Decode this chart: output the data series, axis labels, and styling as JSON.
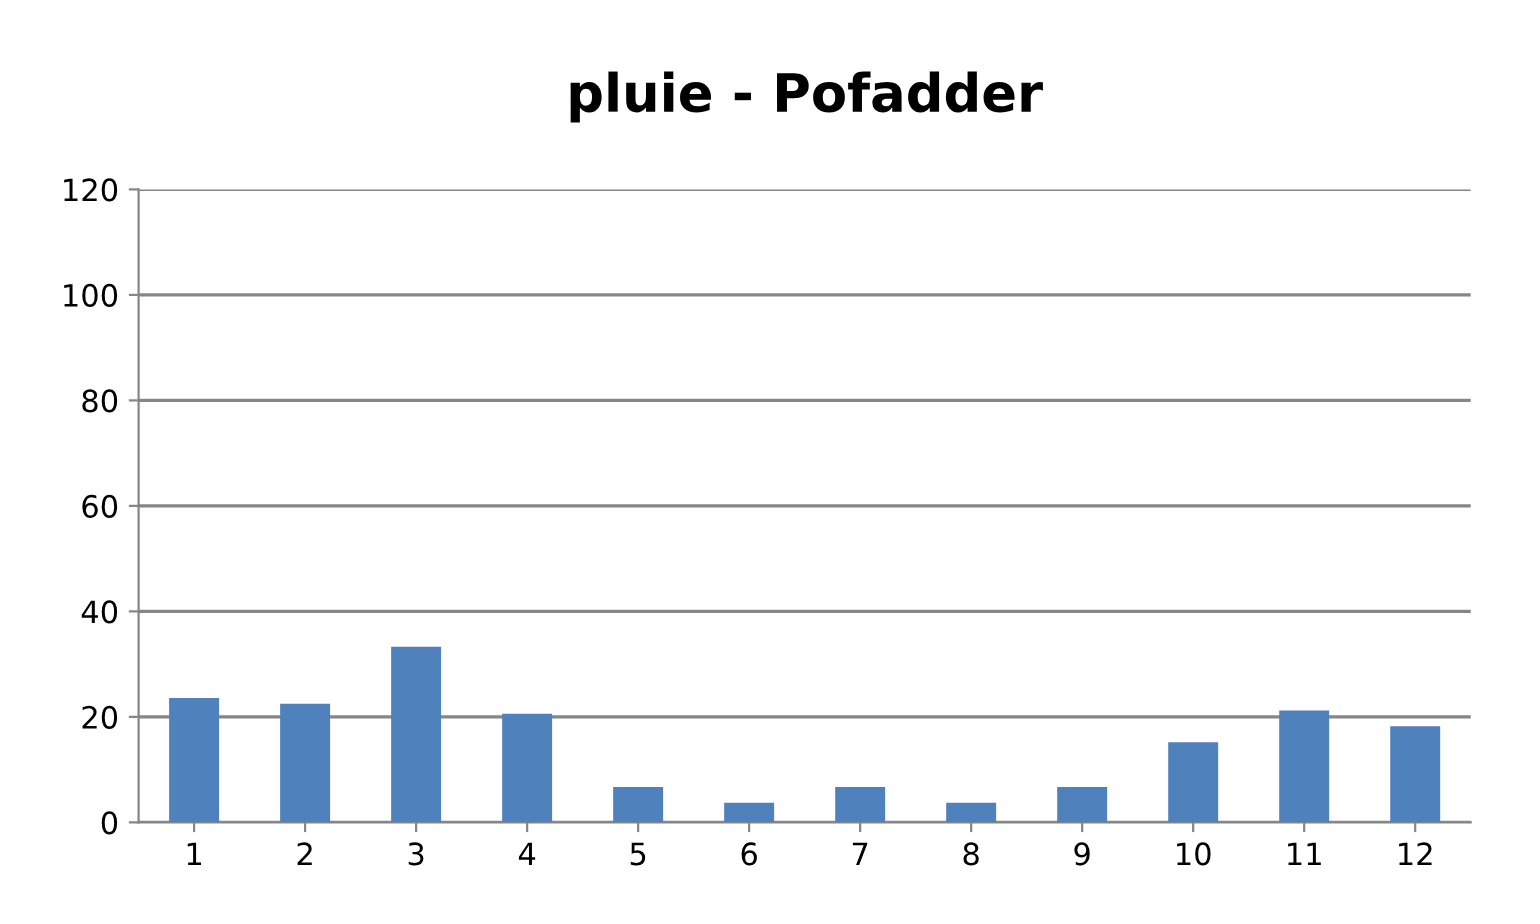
{
  "chart_data": {
    "type": "bar",
    "title": "pluie - Pofadder",
    "categories": [
      "1",
      "2",
      "3",
      "4",
      "5",
      "6",
      "7",
      "8",
      "9",
      "10",
      "11",
      "12"
    ],
    "values": [
      23.6,
      22.5,
      33.3,
      20.6,
      6.7,
      3.7,
      6.7,
      3.7,
      6.7,
      15.2,
      21.2,
      18.2
    ],
    "color": "#4f81bd",
    "ylim": [
      0,
      120
    ],
    "yticks": [
      0,
      20,
      40,
      60,
      80,
      100,
      120
    ],
    "grid": "y",
    "legend": false
  }
}
